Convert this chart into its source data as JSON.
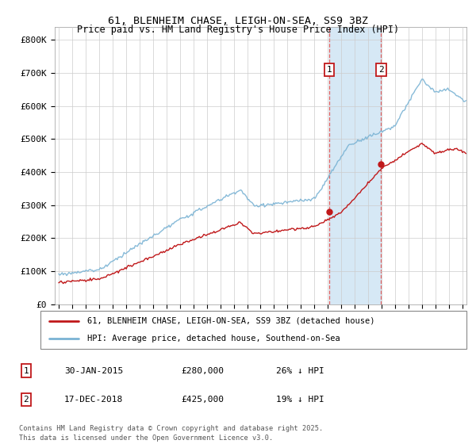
{
  "title": "61, BLENHEIM CHASE, LEIGH-ON-SEA, SS9 3BZ",
  "subtitle": "Price paid vs. HM Land Registry's House Price Index (HPI)",
  "legend_line1": "61, BLENHEIM CHASE, LEIGH-ON-SEA, SS9 3BZ (detached house)",
  "legend_line2": "HPI: Average price, detached house, Southend-on-Sea",
  "footer": "Contains HM Land Registry data © Crown copyright and database right 2025.\nThis data is licensed under the Open Government Licence v3.0.",
  "annotation1": {
    "label": "1",
    "date": "30-JAN-2015",
    "price": "£280,000",
    "pct": "26% ↓ HPI"
  },
  "annotation2": {
    "label": "2",
    "date": "17-DEC-2018",
    "price": "£425,000",
    "pct": "19% ↓ HPI"
  },
  "hpi_color": "#7ab3d4",
  "price_color": "#c0181a",
  "shaded_color": "#d6e8f5",
  "background_color": "#ffffff",
  "grid_color": "#cccccc",
  "ylim": [
    0,
    840000
  ],
  "yticks": [
    0,
    100000,
    200000,
    300000,
    400000,
    500000,
    600000,
    700000,
    800000
  ],
  "ytick_labels": [
    "£0",
    "£100K",
    "£200K",
    "£300K",
    "£400K",
    "£500K",
    "£600K",
    "£700K",
    "£800K"
  ],
  "xlim_start": 1994.7,
  "xlim_end": 2025.3,
  "sale1_x": 2015.08,
  "sale1_y": 280000,
  "sale2_x": 2018.96,
  "sale2_y": 425000,
  "shade_start": 2015.08,
  "shade_end": 2018.96,
  "dashed_color": "#e06060"
}
